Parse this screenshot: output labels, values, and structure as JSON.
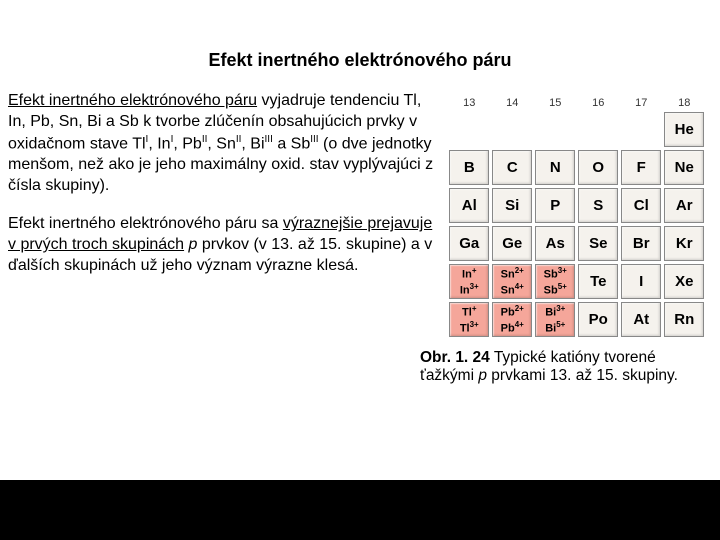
{
  "title": "Efekt inertného elektrónového páru",
  "para1_underline": "Efekt inertného elektrónového páru",
  "para1_rest": " vyjadruje tendenciu Tl, In, Pb, Sn, Bi a Sb k tvorbe zlúčenín obsahujúcich prvky v oxidačnom stave Tl",
  "s1": "I",
  "p1b": ", In",
  "s2": "I",
  "p1c": ", Pb",
  "s3": "II",
  "p1d": ", Sn",
  "s4": "II",
  "p1e": ", Bi",
  "s5": "III",
  "p1f": " a Sb",
  "s6": "III",
  "p1g": " (o dve jednotky menšom, než ako je jeho maximálny oxid. stav vyplývajúci z čísla skupiny).",
  "para2a": "Efekt inertného elektrónového páru sa ",
  "para2_under": "výraznejšie prejavuje v prvých troch skupinách",
  "para2b": " ",
  "para2_ital": "p",
  "para2c": " prvkov (v 13. až 15. skupine) a v ďalších skupinách už jeho význam výrazne klesá.",
  "headers": [
    "13",
    "14",
    "15",
    "16",
    "17",
    "18"
  ],
  "rows": [
    [
      "",
      "",
      "",
      "",
      "",
      "He"
    ],
    [
      "B",
      "C",
      "N",
      "O",
      "F",
      "Ne"
    ],
    [
      "Al",
      "Si",
      "P",
      "S",
      "Cl",
      "Ar"
    ],
    [
      "Ga",
      "Ge",
      "As",
      "Se",
      "Br",
      "Kr"
    ]
  ],
  "hl_row1": [
    {
      "a": "In",
      "as": "+",
      "b": "In",
      "bs": "3+"
    },
    {
      "a": "Sn",
      "as": "2+",
      "b": "Sn",
      "bs": "4+"
    },
    {
      "a": "Sb",
      "as": "3+",
      "b": "Sb",
      "bs": "5+"
    }
  ],
  "plain_row1": [
    "Te",
    "I",
    "Xe"
  ],
  "hl_row2": [
    {
      "a": "Tl",
      "as": "+",
      "b": "Tl",
      "bs": "3+"
    },
    {
      "a": "Pb",
      "as": "2+",
      "b": "Pb",
      "bs": "4+"
    },
    {
      "a": "Bi",
      "as": "3+",
      "b": "Bi",
      "bs": "5+"
    }
  ],
  "plain_row2": [
    "Po",
    "At",
    "Rn"
  ],
  "caption_bold": "Obr. 1. 24",
  "caption_rest": "  Typické katióny tvorené ťažkými ",
  "caption_ital": "p",
  "caption_end": " prvkami 13. až 15. skupiny.",
  "colors": {
    "bg": "#000000",
    "page": "#ffffff",
    "cell_bg": "#f5f2ed",
    "hl_bg": "#f5a69a",
    "cell_border": "#888888"
  }
}
